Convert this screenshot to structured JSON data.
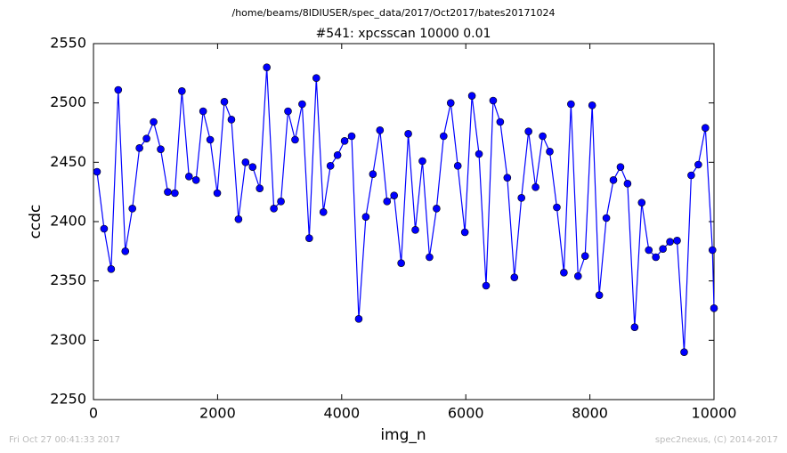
{
  "chart_data": {
    "type": "line",
    "suptitle": "/home/beams/8IDIUSER/spec_data/2017/Oct2017/bates20171024",
    "title": "#541: xpcsscan 10000 0.01",
    "xlabel": "img_n",
    "ylabel": "ccdc",
    "x": [
      57,
      171,
      285,
      399,
      513,
      627,
      741,
      855,
      969,
      1083,
      1197,
      1311,
      1425,
      1539,
      1653,
      1767,
      1881,
      1995,
      2109,
      2223,
      2337,
      2451,
      2565,
      2679,
      2793,
      2907,
      3021,
      3135,
      3249,
      3363,
      3477,
      3591,
      3705,
      3819,
      3933,
      4047,
      4161,
      4275,
      4389,
      4503,
      4617,
      4731,
      4845,
      4959,
      5073,
      5187,
      5301,
      5415,
      5529,
      5643,
      5757,
      5871,
      5985,
      6099,
      6213,
      6327,
      6441,
      6555,
      6669,
      6783,
      6897,
      7011,
      7125,
      7239,
      7353,
      7467,
      7581,
      7695,
      7809,
      7923,
      8037,
      8151,
      8265,
      8379,
      8493,
      8607,
      8721,
      8835,
      8949,
      9063,
      9177,
      9291,
      9405,
      9519,
      9633,
      9747,
      9861,
      9975,
      10000
    ],
    "series": [
      {
        "color": "#0000ff",
        "values": [
          2442,
          2394,
          2360,
          2511,
          2375,
          2411,
          2462,
          2470,
          2484,
          2461,
          2425,
          2424,
          2510,
          2438,
          2435,
          2493,
          2469,
          2424,
          2501,
          2486,
          2402,
          2450,
          2446,
          2428,
          2530,
          2411,
          2417,
          2493,
          2469,
          2499,
          2386,
          2521,
          2408,
          2447,
          2456,
          2468,
          2472,
          2318,
          2404,
          2440,
          2477,
          2417,
          2422,
          2365,
          2474,
          2393,
          2451,
          2370,
          2411,
          2472,
          2500,
          2447,
          2391,
          2506,
          2457,
          2346,
          2502,
          2484,
          2437,
          2353,
          2420,
          2476,
          2429,
          2472,
          2459,
          2412,
          2357,
          2499,
          2354,
          2371,
          2498,
          2338,
          2403,
          2435,
          2446,
          2432,
          2311,
          2416,
          2376,
          2370,
          2377,
          2383,
          2384,
          2290,
          2439,
          2448,
          2479,
          2376,
          2327
        ]
      }
    ],
    "xlim": [
      0,
      10000
    ],
    "xticks": [
      0,
      2000,
      4000,
      6000,
      8000,
      10000
    ],
    "ylim": [
      2250,
      2550
    ],
    "yticks": [
      2250,
      2300,
      2350,
      2400,
      2450,
      2500,
      2550
    ],
    "grid": false
  },
  "footer": {
    "left": "Fri Oct 27 00:41:33 2017",
    "right": "spec2nexus, (C) 2014-2017"
  }
}
